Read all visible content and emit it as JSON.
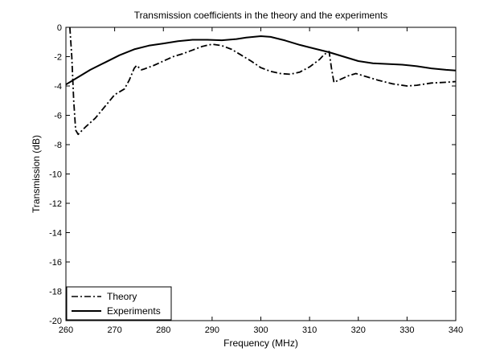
{
  "chart_data": {
    "type": "line",
    "title": "Transmission coefficients in the theory and the experiments",
    "xlabel": "Frequency (MHz)",
    "ylabel": "Transmission (dB)",
    "xlim": [
      260,
      340
    ],
    "ylim": [
      -20,
      0
    ],
    "xticks": [
      260,
      270,
      280,
      290,
      300,
      310,
      320,
      330,
      340
    ],
    "yticks": [
      0,
      -2,
      -4,
      -6,
      -8,
      -10,
      -12,
      -14,
      -16,
      -18,
      -20
    ],
    "grid": false,
    "legend_position": "bottom-left",
    "series": [
      {
        "name": "Theory",
        "style": "dash-dot",
        "points": [
          [
            260.8,
            0
          ],
          [
            261.2,
            -2.0
          ],
          [
            261.6,
            -5.0
          ],
          [
            262.0,
            -7.0
          ],
          [
            262.5,
            -7.3
          ],
          [
            264,
            -6.8
          ],
          [
            266,
            -6.2
          ],
          [
            268,
            -5.4
          ],
          [
            270,
            -4.6
          ],
          [
            272,
            -4.2
          ],
          [
            273,
            -3.6
          ],
          [
            274,
            -2.8
          ],
          [
            274.5,
            -2.6
          ],
          [
            275.5,
            -2.9
          ],
          [
            276,
            -2.85
          ],
          [
            278,
            -2.6
          ],
          [
            280,
            -2.3
          ],
          [
            282,
            -2.0
          ],
          [
            284,
            -1.8
          ],
          [
            286,
            -1.55
          ],
          [
            288,
            -1.3
          ],
          [
            290,
            -1.15
          ],
          [
            292,
            -1.25
          ],
          [
            294,
            -1.5
          ],
          [
            296,
            -1.9
          ],
          [
            298,
            -2.3
          ],
          [
            300,
            -2.75
          ],
          [
            302,
            -3.0
          ],
          [
            304,
            -3.15
          ],
          [
            306,
            -3.2
          ],
          [
            308,
            -3.05
          ],
          [
            310,
            -2.7
          ],
          [
            312,
            -2.2
          ],
          [
            313,
            -1.85
          ],
          [
            314,
            -1.65
          ],
          [
            314.5,
            -2.8
          ],
          [
            315,
            -3.75
          ],
          [
            316,
            -3.6
          ],
          [
            318,
            -3.3
          ],
          [
            319.5,
            -3.15
          ],
          [
            321,
            -3.3
          ],
          [
            324,
            -3.6
          ],
          [
            327,
            -3.85
          ],
          [
            330,
            -4.0
          ],
          [
            332,
            -3.95
          ],
          [
            335,
            -3.8
          ],
          [
            338,
            -3.75
          ],
          [
            340,
            -3.7
          ]
        ]
      },
      {
        "name": "Experiments",
        "style": "solid",
        "points": [
          [
            260,
            -3.9
          ],
          [
            262,
            -3.5
          ],
          [
            265,
            -2.9
          ],
          [
            268,
            -2.4
          ],
          [
            271,
            -1.9
          ],
          [
            274,
            -1.5
          ],
          [
            277,
            -1.25
          ],
          [
            280,
            -1.1
          ],
          [
            283,
            -0.95
          ],
          [
            286,
            -0.85
          ],
          [
            289,
            -0.85
          ],
          [
            292,
            -0.88
          ],
          [
            295,
            -0.8
          ],
          [
            297,
            -0.7
          ],
          [
            300,
            -0.6
          ],
          [
            302,
            -0.65
          ],
          [
            305,
            -0.9
          ],
          [
            308,
            -1.2
          ],
          [
            311,
            -1.45
          ],
          [
            314,
            -1.7
          ],
          [
            317,
            -2.0
          ],
          [
            320,
            -2.3
          ],
          [
            323,
            -2.45
          ],
          [
            326,
            -2.5
          ],
          [
            329,
            -2.55
          ],
          [
            332,
            -2.65
          ],
          [
            335,
            -2.8
          ],
          [
            338,
            -2.9
          ],
          [
            340,
            -2.95
          ]
        ]
      }
    ]
  }
}
